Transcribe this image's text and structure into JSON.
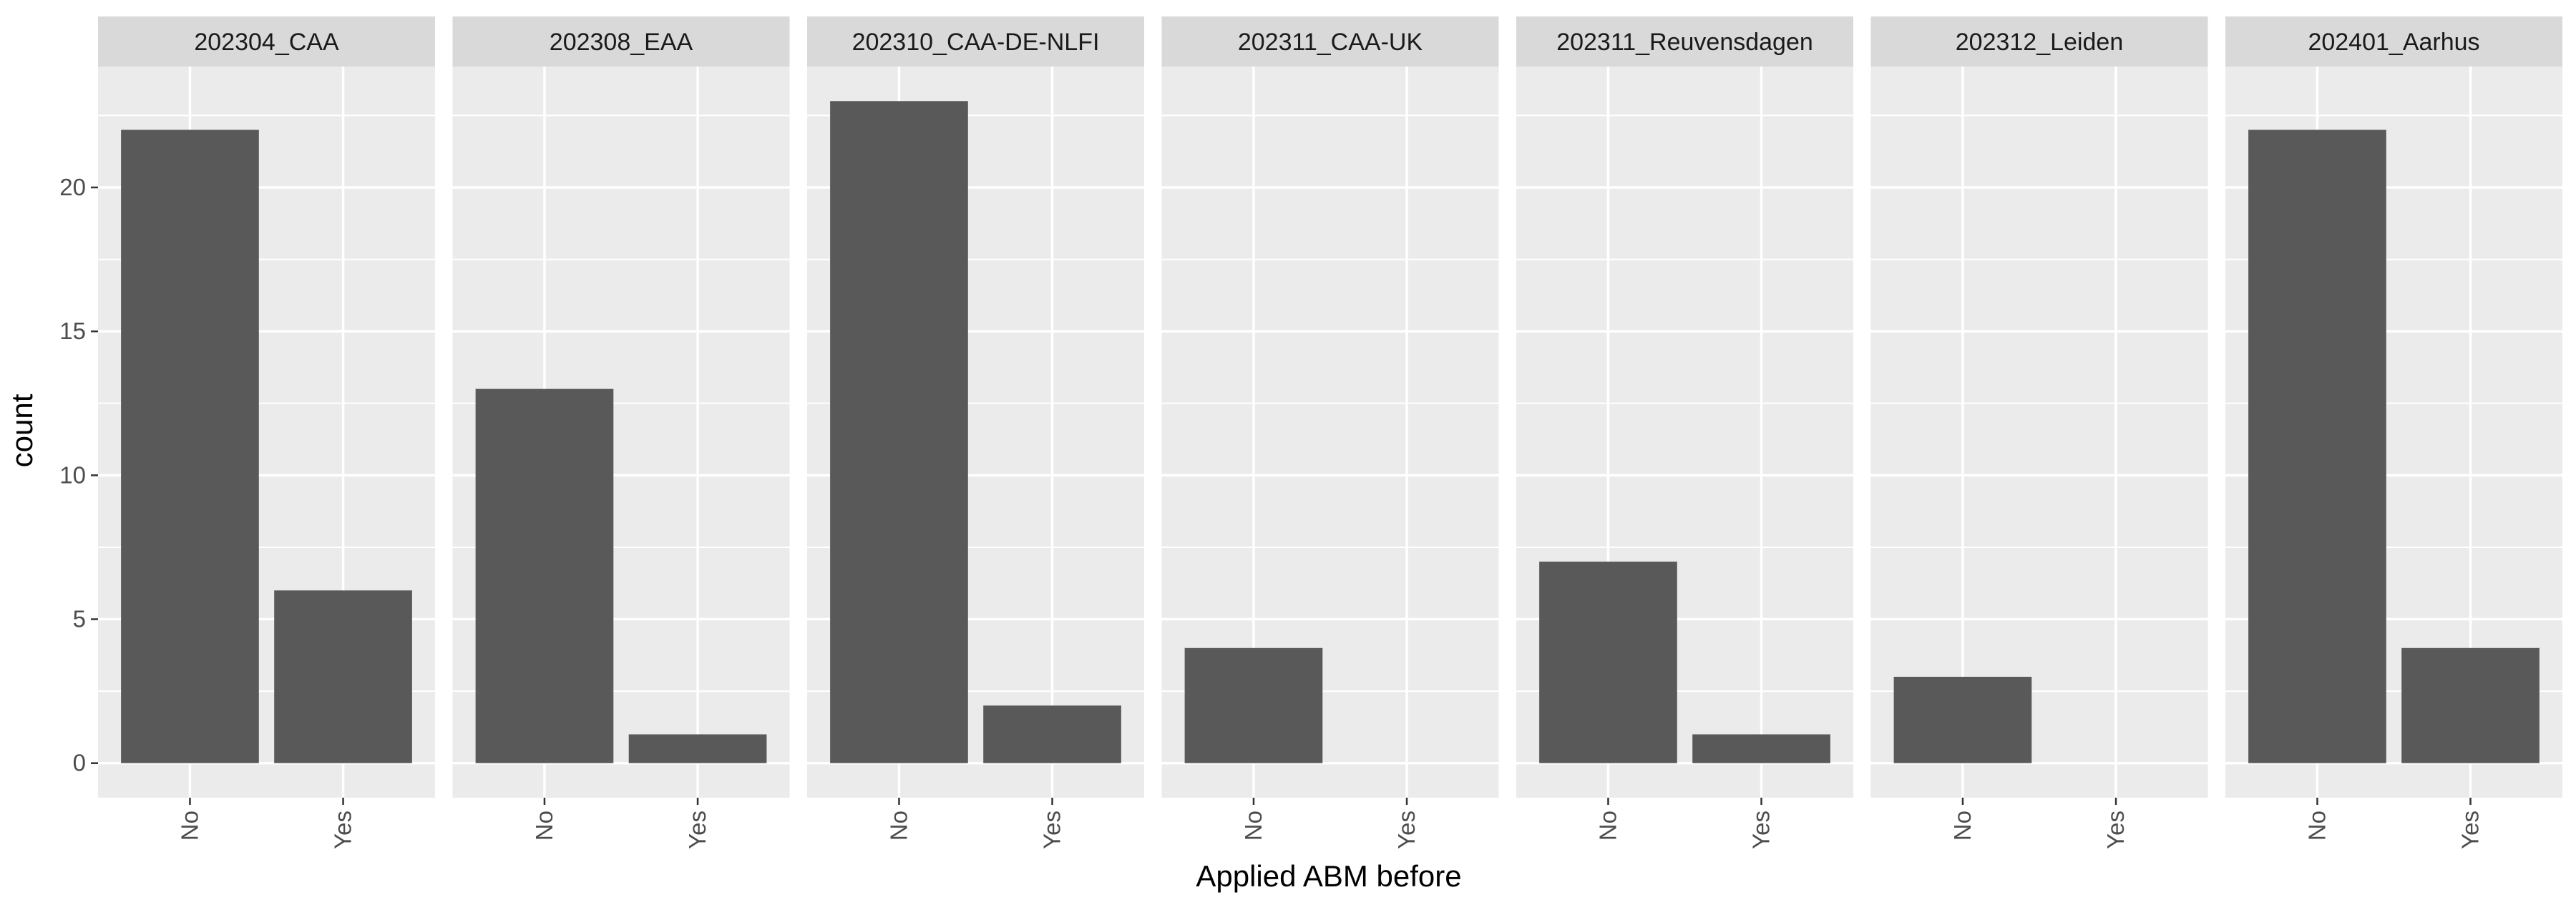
{
  "chart_data": {
    "type": "bar",
    "xlabel": "Applied ABM before",
    "ylabel": "count",
    "categories": [
      "No",
      "Yes"
    ],
    "ylim": [
      -1.2,
      24.2
    ],
    "yticks": [
      0,
      5,
      10,
      15,
      20
    ],
    "grid": true,
    "legend": "none",
    "facets": [
      {
        "label": "202304_CAA",
        "values": [
          22,
          6
        ]
      },
      {
        "label": "202308_EAA",
        "values": [
          13,
          1
        ]
      },
      {
        "label": "202310_CAA-DE-NLFI",
        "values": [
          23,
          2
        ]
      },
      {
        "label": "202311_CAA-UK",
        "values": [
          4,
          0
        ]
      },
      {
        "label": "202311_Reuvensdagen",
        "values": [
          7,
          1
        ]
      },
      {
        "label": "202312_Leiden",
        "values": [
          3,
          0
        ]
      },
      {
        "label": "202401_Aarhus",
        "values": [
          22,
          4
        ]
      }
    ],
    "colors": {
      "bar": "#595959",
      "panel_background": "#ebebeb",
      "strip_background": "#d9d9d9",
      "grid": "#ffffff",
      "tick": "#333333"
    }
  }
}
